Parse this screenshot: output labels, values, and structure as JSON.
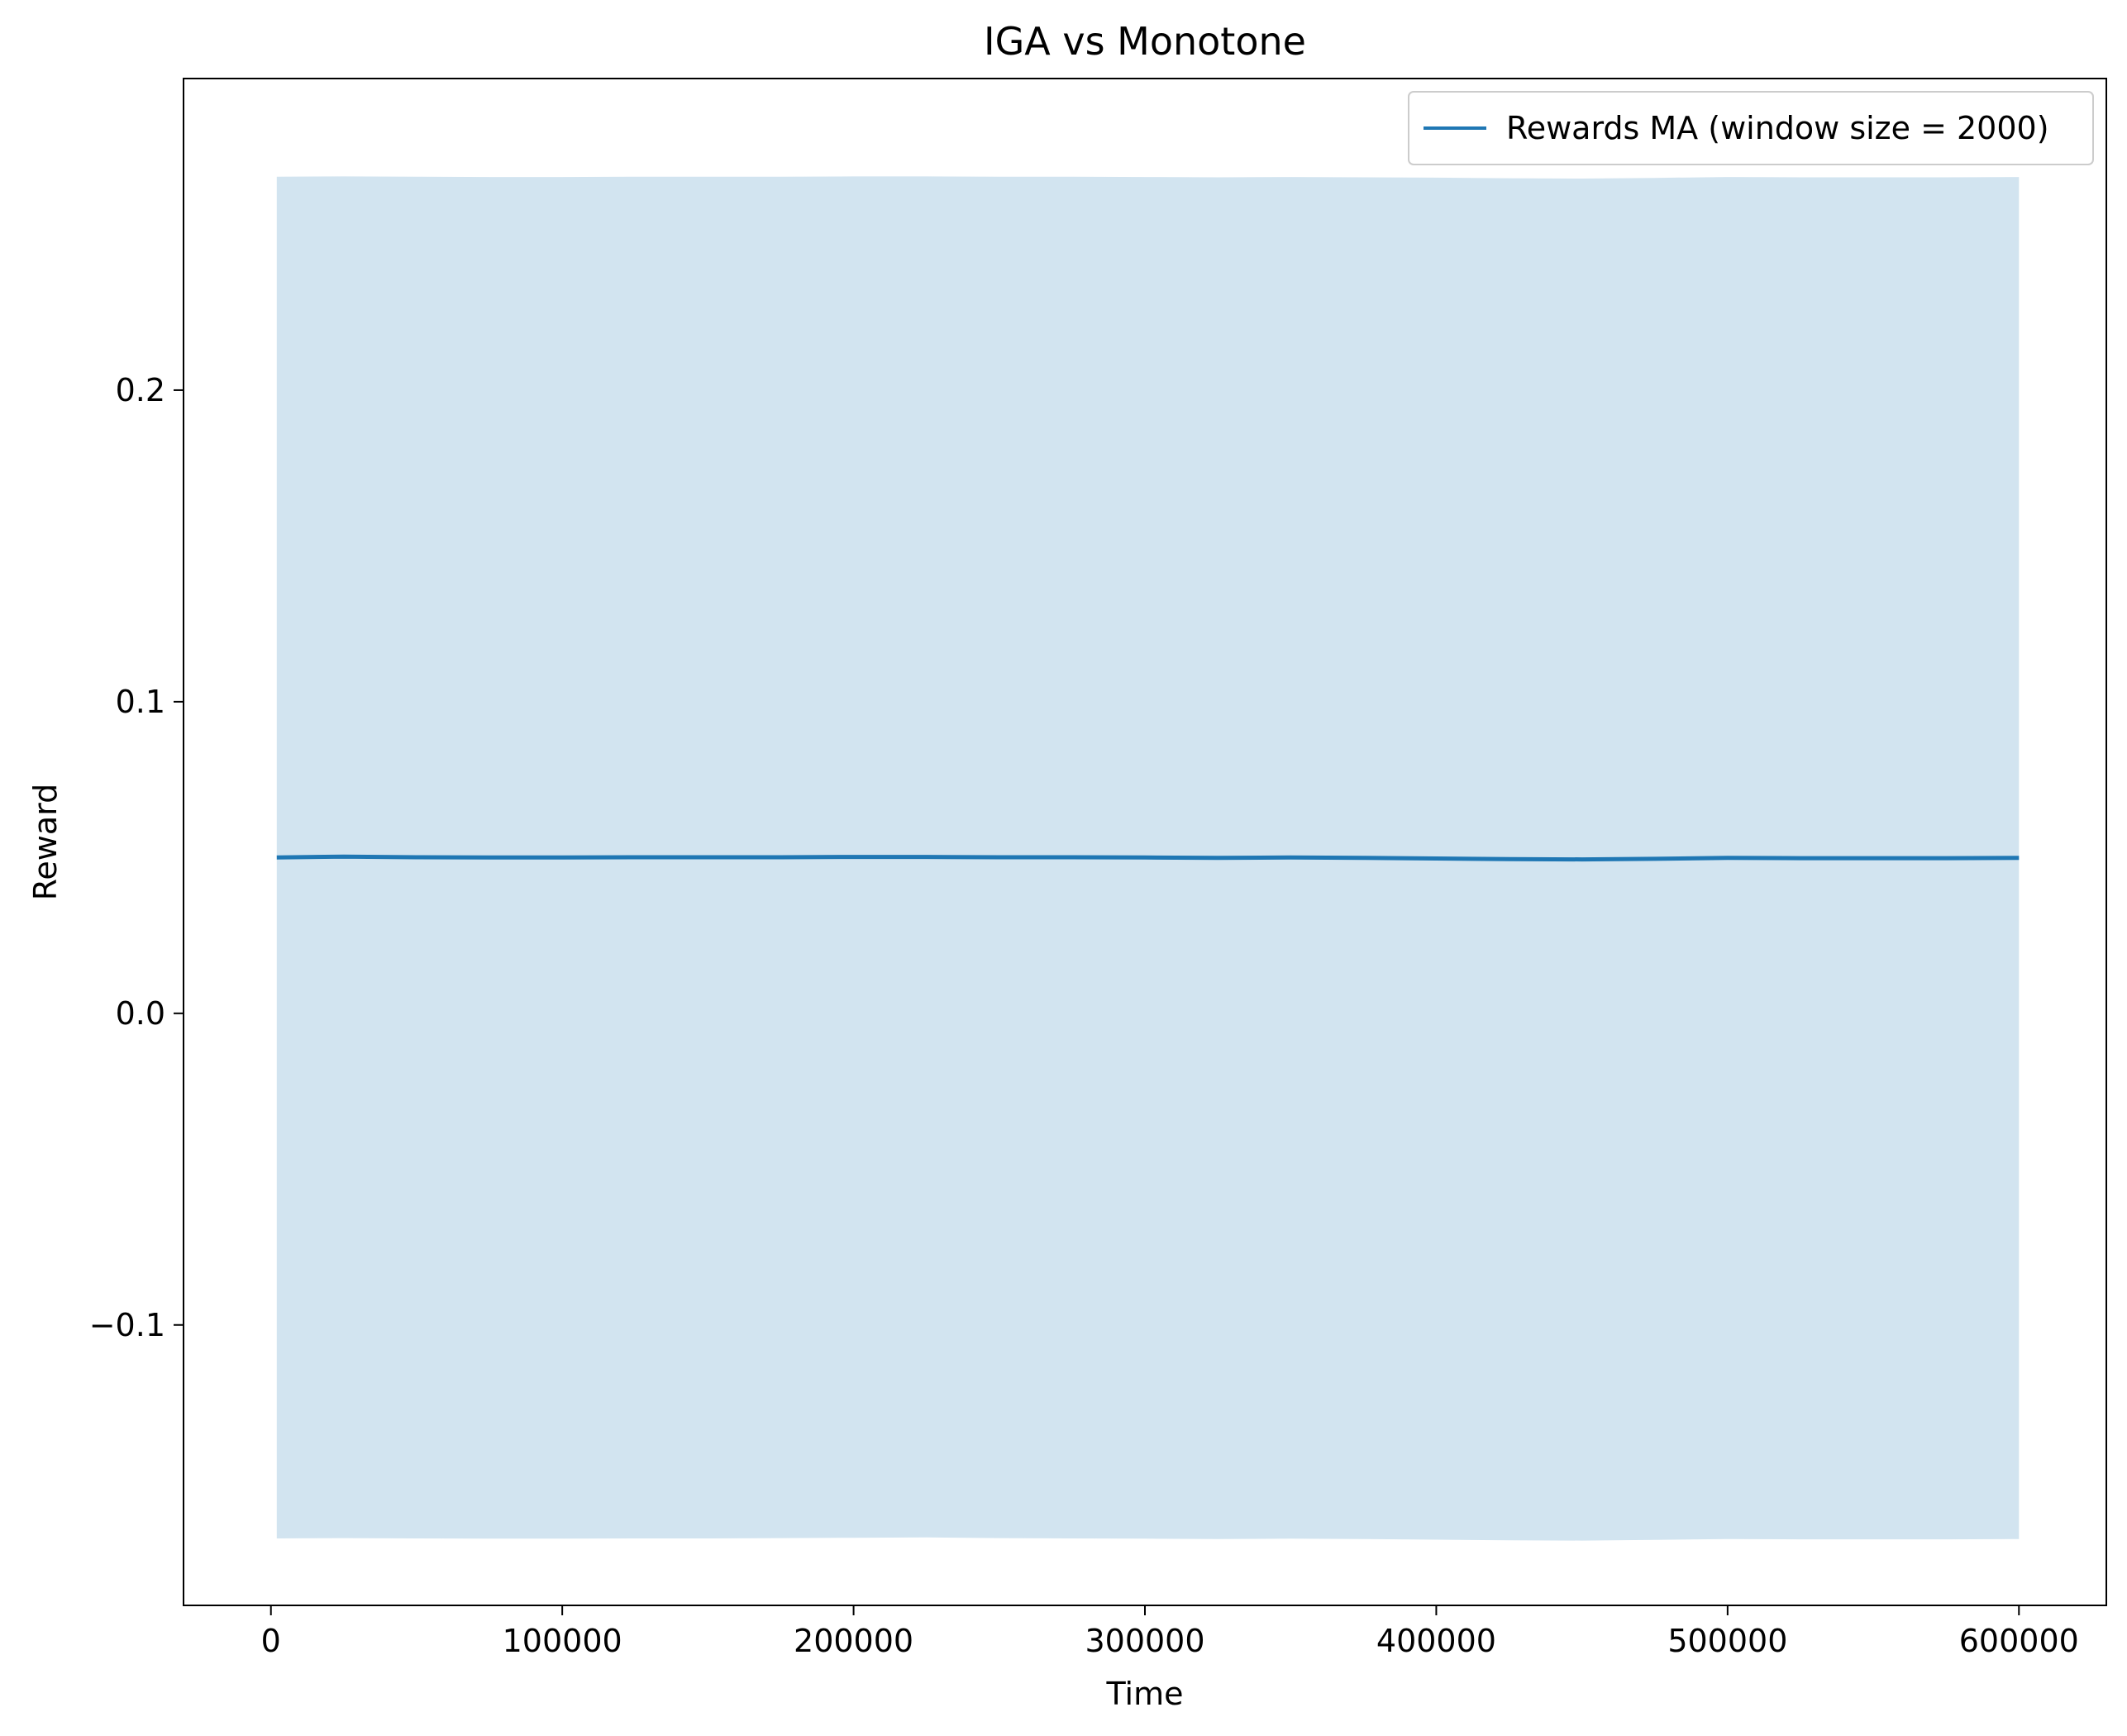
{
  "chart_data": {
    "type": "line",
    "title": "IGA vs Monotone",
    "xlabel": "Time",
    "ylabel": "Reward",
    "xlim": [
      -30000,
      630000
    ],
    "ylim": [
      -0.19,
      0.3
    ],
    "xticks": [
      0,
      100000,
      200000,
      300000,
      400000,
      500000,
      600000
    ],
    "xtick_labels": [
      "0",
      "100000",
      "200000",
      "300000",
      "400000",
      "500000",
      "600000"
    ],
    "yticks": [
      -0.1,
      0.0,
      0.1,
      0.2
    ],
    "ytick_labels": [
      "−0.1",
      "0.0",
      "0.1",
      "0.2"
    ],
    "grid": false,
    "legend_position": "top-right",
    "colors": {
      "line": "#1f77b4",
      "band": "#1f77b4"
    },
    "series": [
      {
        "name": "Rewards MA (window size = 2000)",
        "x": [
          2000,
          25000,
          50000,
          75000,
          100000,
          125000,
          150000,
          175000,
          200000,
          225000,
          250000,
          275000,
          300000,
          325000,
          350000,
          375000,
          400000,
          425000,
          450000,
          475000,
          500000,
          525000,
          550000,
          575000,
          600000
        ],
        "y": [
          0.05,
          0.0503,
          0.0501,
          0.05,
          0.05,
          0.0501,
          0.0501,
          0.0501,
          0.0502,
          0.0502,
          0.0501,
          0.0501,
          0.05,
          0.0499,
          0.05,
          0.0499,
          0.0497,
          0.0495,
          0.0494,
          0.0496,
          0.0499,
          0.0498,
          0.0498,
          0.0498,
          0.0499
        ],
        "band_upper": [
          0.2685,
          0.2686,
          0.2685,
          0.2684,
          0.2684,
          0.2685,
          0.2685,
          0.2685,
          0.2686,
          0.2686,
          0.2685,
          0.2685,
          0.2684,
          0.2683,
          0.2684,
          0.2683,
          0.2682,
          0.268,
          0.2679,
          0.2681,
          0.2684,
          0.2683,
          0.2683,
          0.2683,
          0.2684
        ],
        "band_lower": [
          -0.1685,
          -0.1684,
          -0.1685,
          -0.1686,
          -0.1686,
          -0.1685,
          -0.1685,
          -0.1684,
          -0.1683,
          -0.1682,
          -0.1684,
          -0.1685,
          -0.1686,
          -0.1687,
          -0.1686,
          -0.1687,
          -0.1689,
          -0.1691,
          -0.1692,
          -0.169,
          -0.1687,
          -0.1688,
          -0.1688,
          -0.1688,
          -0.1687
        ]
      }
    ]
  }
}
